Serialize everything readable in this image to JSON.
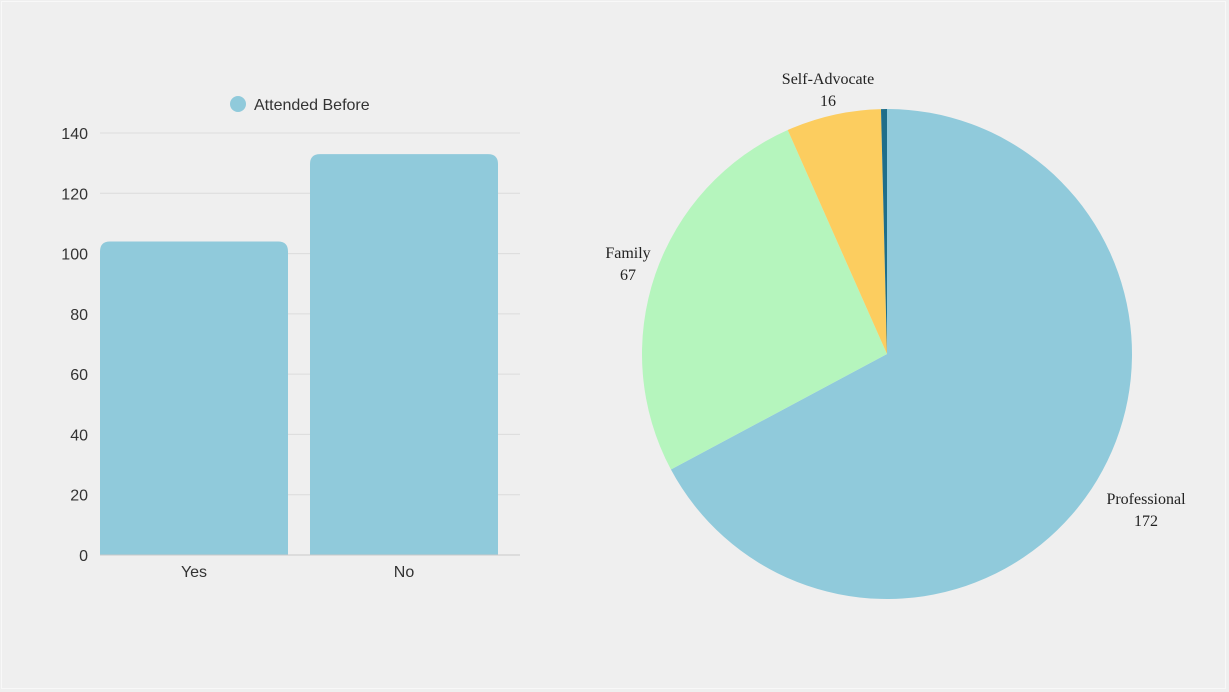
{
  "chart_data": [
    {
      "type": "bar",
      "categories": [
        "Yes",
        "No"
      ],
      "series": [
        {
          "name": "Attended Before",
          "values": [
            104,
            133
          ],
          "color": "#90cadb"
        }
      ],
      "ylim": [
        0,
        140
      ],
      "yticks": [
        0,
        20,
        40,
        60,
        80,
        100,
        120,
        140
      ],
      "grid": true,
      "legend": "top-center"
    },
    {
      "type": "pie",
      "slices": [
        {
          "label": "Professional",
          "value": 172,
          "color": "#90cadb"
        },
        {
          "label": "Family",
          "value": 67,
          "color": "#b5f5bd"
        },
        {
          "label": "Self-Advocate",
          "value": 16,
          "color": "#fccd5f"
        },
        {
          "label": "",
          "value": 1,
          "color": "#1f6e8a"
        }
      ]
    }
  ]
}
